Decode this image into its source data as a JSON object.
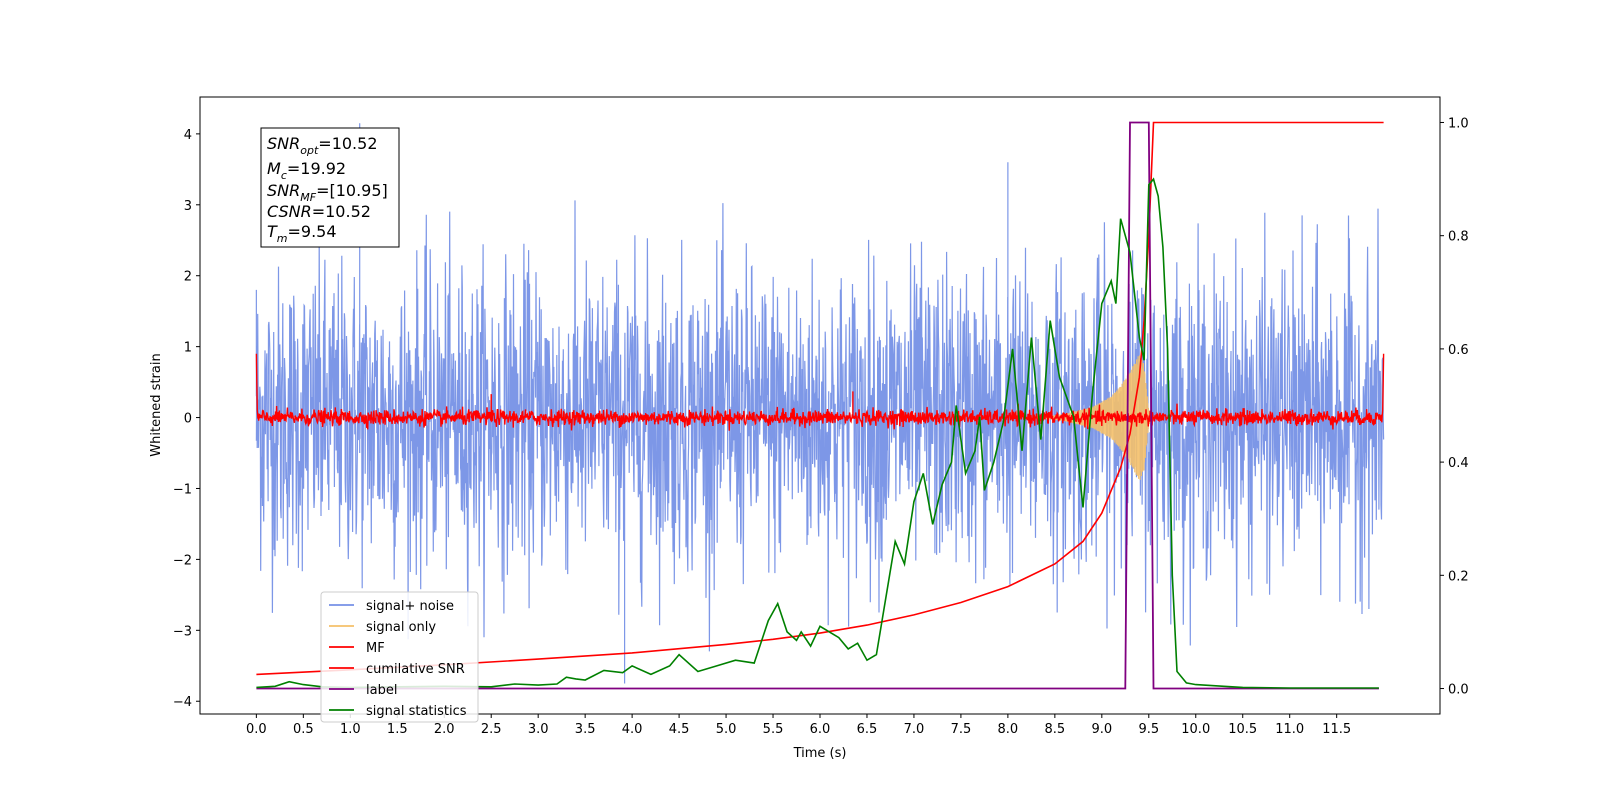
{
  "chart_data": {
    "type": "line",
    "title": "",
    "xlabel": "Time (s)",
    "ylabel": "Whitened strain",
    "xlim": [
      -0.6,
      12.6
    ],
    "ylim": [
      -4.18,
      4.52
    ],
    "y2lim": [
      -0.045,
      1.045
    ],
    "x_ticks": [
      "0.0",
      "0.5",
      "1.0",
      "1.5",
      "2.0",
      "2.5",
      "3.0",
      "3.5",
      "4.0",
      "4.5",
      "5.0",
      "5.5",
      "6.0",
      "6.5",
      "7.0",
      "7.5",
      "8.0",
      "8.5",
      "9.0",
      "9.5",
      "10.0",
      "10.5",
      "11.0",
      "11.5"
    ],
    "y_ticks": [
      "4",
      "3",
      "2",
      "1",
      "0",
      "−1",
      "−2",
      "−3",
      "−4"
    ],
    "y2_ticks": [
      "1.0",
      "0.8",
      "0.6",
      "0.4",
      "0.2",
      "0.0"
    ],
    "grid": false,
    "legend_position": "lower-left",
    "annotation": {
      "lines": [
        {
          "sym": "SNR",
          "sub": "opt",
          "value": "=10.52"
        },
        {
          "sym": "M",
          "sub": "c",
          "value": "=19.92"
        },
        {
          "sym": "SNR",
          "sub": "MF",
          "value": "=[10.95]"
        },
        {
          "sym": "CSNR",
          "sub": "",
          "value": "=10.52"
        },
        {
          "sym": "T",
          "sub": "m",
          "value": "=9.54"
        }
      ]
    },
    "series": [
      {
        "name": "signal+ noise",
        "color": "#7691e6",
        "axis": "left",
        "style": "noise band, typical range ±2.5, peaks near 4.1 at 1.1 s and 3.6 at 8.0 s"
      },
      {
        "name": "signal only",
        "color": "#f4c06a",
        "axis": "left",
        "style": "chirp envelope rising from 8.4 s to peak 0.9 at 9.4 s, ending 9.5 s",
        "envelope": [
          [
            8.3,
            0.0
          ],
          [
            8.6,
            0.05
          ],
          [
            8.9,
            0.15
          ],
          [
            9.1,
            0.3
          ],
          [
            9.2,
            0.45
          ],
          [
            9.3,
            0.65
          ],
          [
            9.4,
            0.9
          ],
          [
            9.45,
            0.75
          ],
          [
            9.5,
            0.1
          ],
          [
            9.55,
            0.0
          ]
        ]
      },
      {
        "name": "MF",
        "color": "#ff0000",
        "axis": "left",
        "style": "noise band around 0, amplitude about 0.12"
      },
      {
        "name": "cumilative SNR",
        "color": "#ff0000",
        "axis": "right",
        "points": [
          [
            0,
            0.025
          ],
          [
            1,
            0.033
          ],
          [
            2,
            0.042
          ],
          [
            3,
            0.052
          ],
          [
            4,
            0.063
          ],
          [
            5,
            0.078
          ],
          [
            5.5,
            0.087
          ],
          [
            6,
            0.098
          ],
          [
            6.5,
            0.112
          ],
          [
            7,
            0.13
          ],
          [
            7.5,
            0.152
          ],
          [
            8,
            0.18
          ],
          [
            8.5,
            0.22
          ],
          [
            8.8,
            0.26
          ],
          [
            9.0,
            0.31
          ],
          [
            9.2,
            0.39
          ],
          [
            9.3,
            0.45
          ],
          [
            9.4,
            0.55
          ],
          [
            9.45,
            0.65
          ],
          [
            9.5,
            0.8
          ],
          [
            9.55,
            1.0
          ],
          [
            12,
            1.0
          ]
        ]
      },
      {
        "name": "label",
        "color": "#800080",
        "axis": "right",
        "points": [
          [
            0,
            0.0
          ],
          [
            9.25,
            0.0
          ],
          [
            9.3,
            1.0
          ],
          [
            9.5,
            1.0
          ],
          [
            9.55,
            0.0
          ],
          [
            11.95,
            0.0
          ]
        ]
      },
      {
        "name": "signal statistics",
        "color": "#008000",
        "axis": "right",
        "points": [
          [
            0,
            0.002
          ],
          [
            0.2,
            0.004
          ],
          [
            0.35,
            0.012
          ],
          [
            0.5,
            0.007
          ],
          [
            0.7,
            0.003
          ],
          [
            1.0,
            0.002
          ],
          [
            1.5,
            0.003
          ],
          [
            2.0,
            0.004
          ],
          [
            2.5,
            0.003
          ],
          [
            2.75,
            0.008
          ],
          [
            3.0,
            0.006
          ],
          [
            3.2,
            0.008
          ],
          [
            3.3,
            0.02
          ],
          [
            3.4,
            0.017
          ],
          [
            3.5,
            0.015
          ],
          [
            3.7,
            0.032
          ],
          [
            3.9,
            0.028
          ],
          [
            4.0,
            0.04
          ],
          [
            4.2,
            0.025
          ],
          [
            4.4,
            0.04
          ],
          [
            4.5,
            0.06
          ],
          [
            4.7,
            0.03
          ],
          [
            4.9,
            0.04
          ],
          [
            5.1,
            0.05
          ],
          [
            5.3,
            0.045
          ],
          [
            5.45,
            0.12
          ],
          [
            5.55,
            0.15
          ],
          [
            5.65,
            0.1
          ],
          [
            5.75,
            0.085
          ],
          [
            5.8,
            0.1
          ],
          [
            5.9,
            0.075
          ],
          [
            6.0,
            0.11
          ],
          [
            6.2,
            0.09
          ],
          [
            6.3,
            0.07
          ],
          [
            6.4,
            0.08
          ],
          [
            6.5,
            0.05
          ],
          [
            6.6,
            0.06
          ],
          [
            6.8,
            0.26
          ],
          [
            6.9,
            0.22
          ],
          [
            7.0,
            0.33
          ],
          [
            7.1,
            0.38
          ],
          [
            7.2,
            0.29
          ],
          [
            7.3,
            0.36
          ],
          [
            7.4,
            0.4
          ],
          [
            7.45,
            0.5
          ],
          [
            7.55,
            0.38
          ],
          [
            7.65,
            0.42
          ],
          [
            7.7,
            0.48
          ],
          [
            7.75,
            0.35
          ],
          [
            7.85,
            0.4
          ],
          [
            7.95,
            0.47
          ],
          [
            8.05,
            0.6
          ],
          [
            8.15,
            0.42
          ],
          [
            8.25,
            0.62
          ],
          [
            8.35,
            0.44
          ],
          [
            8.45,
            0.65
          ],
          [
            8.55,
            0.55
          ],
          [
            8.7,
            0.48
          ],
          [
            8.8,
            0.32
          ],
          [
            8.9,
            0.52
          ],
          [
            9.0,
            0.68
          ],
          [
            9.1,
            0.72
          ],
          [
            9.15,
            0.68
          ],
          [
            9.2,
            0.83
          ],
          [
            9.3,
            0.77
          ],
          [
            9.4,
            0.62
          ],
          [
            9.45,
            0.58
          ],
          [
            9.5,
            0.89
          ],
          [
            9.55,
            0.9
          ],
          [
            9.6,
            0.87
          ],
          [
            9.65,
            0.78
          ],
          [
            9.7,
            0.6
          ],
          [
            9.75,
            0.2
          ],
          [
            9.8,
            0.03
          ],
          [
            9.9,
            0.01
          ],
          [
            10.0,
            0.007
          ],
          [
            10.3,
            0.004
          ],
          [
            10.5,
            0.002
          ],
          [
            11.0,
            0.001
          ],
          [
            11.95,
            0.001
          ]
        ]
      }
    ]
  }
}
